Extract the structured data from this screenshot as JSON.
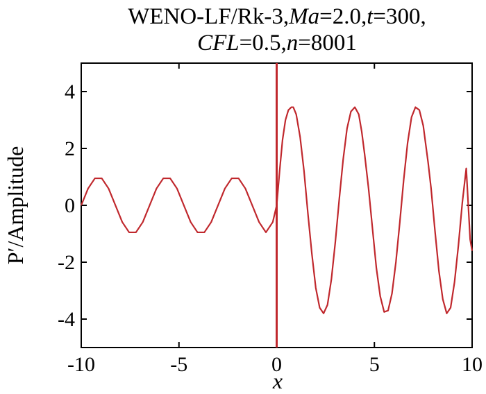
{
  "chart_data": {
    "type": "line",
    "title": {
      "line1": [
        {
          "text": "WENO-LF/Rk-3,",
          "italic": false
        },
        {
          "text": "Ma",
          "italic": true
        },
        {
          "text": "=2.0,",
          "italic": false
        },
        {
          "text": "t",
          "italic": true
        },
        {
          "text": "=300,",
          "italic": false
        }
      ],
      "line2": [
        {
          "text": "CFL",
          "italic": true
        },
        {
          "text": "=0.5,",
          "italic": false
        },
        {
          "text": "n",
          "italic": true
        },
        {
          "text": "=8001",
          "italic": false
        }
      ]
    },
    "xlabel": "x",
    "ylabel": "P′/Amplitude",
    "xlim": [
      -10,
      10
    ],
    "ylim": [
      -5,
      5
    ],
    "xticks": [
      -10,
      -5,
      0,
      5,
      10
    ],
    "xtick_labels": [
      "-10",
      "-5",
      "0",
      "5",
      "10"
    ],
    "yticks": [
      -4,
      -2,
      0,
      2,
      4
    ],
    "ytick_labels": [
      "-4",
      "-2",
      "0",
      "2",
      "4"
    ],
    "grid": false,
    "shock_location_x": 0,
    "series": [
      {
        "color": "#c0282d",
        "x": [
          -10,
          -9.65,
          -9.3,
          -8.95,
          -8.6,
          -8.25,
          -7.9,
          -7.55,
          -7.2,
          -6.85,
          -6.5,
          -6.15,
          -5.8,
          -5.45,
          -5.1,
          -4.75,
          -4.4,
          -4.05,
          -3.7,
          -3.35,
          -3.0,
          -2.65,
          -2.3,
          -1.95,
          -1.6,
          -1.25,
          -0.9,
          -0.55,
          -0.2,
          -0.01,
          0.0,
          0.15,
          0.3,
          0.45,
          0.6,
          0.75,
          0.85,
          1.0,
          1.2,
          1.4,
          1.6,
          1.8,
          2.0,
          2.2,
          2.4,
          2.6,
          2.8,
          3.0,
          3.2,
          3.4,
          3.6,
          3.8,
          4.0,
          4.2,
          4.35,
          4.5,
          4.7,
          4.9,
          5.1,
          5.3,
          5.5,
          5.7,
          5.9,
          6.1,
          6.3,
          6.5,
          6.7,
          6.9,
          7.1,
          7.3,
          7.5,
          7.75,
          7.9,
          8.1,
          8.3,
          8.5,
          8.7,
          8.9,
          9.1,
          9.3,
          9.5,
          9.7,
          9.9,
          10.0
        ],
        "y": [
          0.0,
          0.59,
          0.95,
          0.95,
          0.59,
          0.0,
          -0.59,
          -0.95,
          -0.95,
          -0.59,
          0.0,
          0.59,
          0.95,
          0.95,
          0.59,
          0.0,
          -0.59,
          -0.95,
          -0.95,
          -0.59,
          0.0,
          0.59,
          0.95,
          0.95,
          0.59,
          0.0,
          -0.59,
          -0.95,
          -0.59,
          -0.03,
          0.0,
          1.2,
          2.3,
          3.0,
          3.35,
          3.45,
          3.45,
          3.2,
          2.4,
          1.2,
          -0.3,
          -1.7,
          -2.9,
          -3.6,
          -3.8,
          -3.5,
          -2.6,
          -1.3,
          0.2,
          1.6,
          2.7,
          3.3,
          3.45,
          3.2,
          2.6,
          1.8,
          0.6,
          -0.8,
          -2.2,
          -3.2,
          -3.75,
          -3.7,
          -3.1,
          -2.0,
          -0.6,
          0.9,
          2.2,
          3.1,
          3.45,
          3.35,
          2.8,
          1.5,
          0.6,
          -0.9,
          -2.3,
          -3.3,
          -3.8,
          -3.6,
          -2.7,
          -1.4,
          0.1,
          1.3,
          -1.2,
          -1.6
        ]
      }
    ]
  }
}
